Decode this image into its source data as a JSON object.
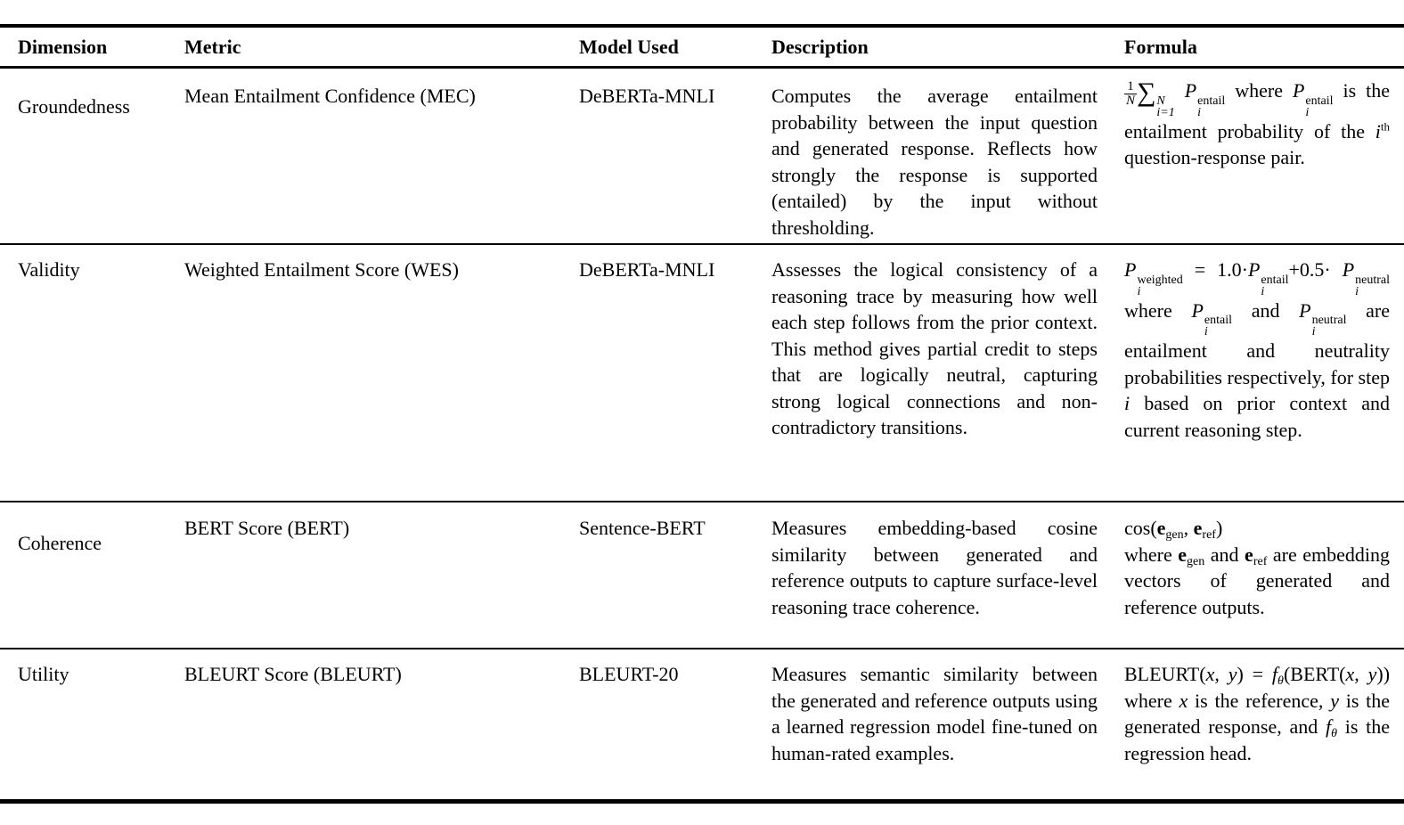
{
  "page": {
    "background": "#ffffff",
    "text_color": "#000000"
  },
  "table": {
    "headers": [
      "Dimension",
      "Metric",
      "Model Used",
      "Description",
      "Formula"
    ],
    "rows": [
      {
        "dimension": "Groundedness",
        "metric": "Mean Entailment Confidence (MEC)",
        "model": "DeBERTa-MNLI",
        "description": "Computes the average entailment probability between the input question and generated response. Reflects how strongly the response is supported (entailed) by the input without thresholding.",
        "formula": {
          "frac_num": "1",
          "frac_den": "N",
          "sum_sign": "∑",
          "sum_upper": "N",
          "sum_lower": "i=1",
          "p1_base": "P",
          "p1_sup": "entail",
          "p1_sub": "i",
          "where": "where",
          "p2_base": "P",
          "p2_sup": "entail",
          "p2_sub": "i",
          "mid_text": "is the entailment probability of the",
          "i_base": "i",
          "i_sup": "th",
          "end_text": "question-response pair."
        }
      },
      {
        "dimension": "Validity",
        "metric": "Weighted Entailment Score (WES)",
        "model": "DeBERTa-MNLI",
        "description": "Assesses the logical consistency of a reasoning trace by measuring how well each step follows from the prior context. This method gives partial credit to steps that are logically neutral, capturing strong logical connections and non-contradictory transitions.",
        "formula": {
          "pw_base": "P",
          "pw_sup": "weighted",
          "pw_sub": "i",
          "eq": "=",
          "coef1": "1.0",
          "dot1": "·",
          "pe1_base": "P",
          "pe1_sup": "entail",
          "pe1_sub": "i",
          "plus": "+",
          "coef2": "0.5",
          "dot2": "·",
          "pn1_base": "P",
          "pn1_sup": "neutral",
          "pn1_sub": "i",
          "where": "where",
          "pe2_base": "P",
          "pe2_sup": "entail",
          "pe2_sub": "i",
          "and": "and",
          "pn2_base": "P",
          "pn2_sup": "neutral",
          "pn2_sub": "i",
          "mid_text": "are entailment and neutrality probabilities respectively, for step",
          "i_var": "i",
          "end_text": "based on prior context and current reasoning step."
        }
      },
      {
        "dimension": "Coherence",
        "metric": "BERT Score (BERT)",
        "model": "Sentence-BERT",
        "description": "Measures embedding-based cosine similarity between generated and reference outputs to capture surface-level reasoning trace coherence.",
        "formula": {
          "cos_open": "cos(",
          "e1_base": "e",
          "e1_sub": "gen",
          "comma": ",",
          "e2_base": "e",
          "e2_sub": "ref",
          "cos_close": ")",
          "where": "where",
          "e3_base": "e",
          "e3_sub": "gen",
          "and": "and",
          "e4_base": "e",
          "e4_sub": "ref",
          "end_text": "are embedding vectors of generated and reference outputs."
        }
      },
      {
        "dimension": "Utility",
        "metric": "BLEURT Score (BLEURT)",
        "model": "BLEURT-20",
        "description": "Measures semantic similarity between the generated and reference outputs using a learned regression model fine-tuned on human-rated examples.",
        "formula": {
          "bleurt_open": "BLEURT(",
          "x1": "x",
          "comma1": ",",
          "y1": "y",
          "close1": ")",
          "eq": "=",
          "f1_base": "f",
          "f1_sub": "θ",
          "open2": "(",
          "bert_open": "BERT(",
          "x2": "x",
          "comma2": ",",
          "y2": "y",
          "close2": "))",
          "where": "where",
          "x3": "x",
          "text1": "is the reference,",
          "y3": "y",
          "text2": "is the generated response, and",
          "f2_base": "f",
          "f2_sub": "θ",
          "end_text": "is the regression head."
        }
      }
    ]
  }
}
